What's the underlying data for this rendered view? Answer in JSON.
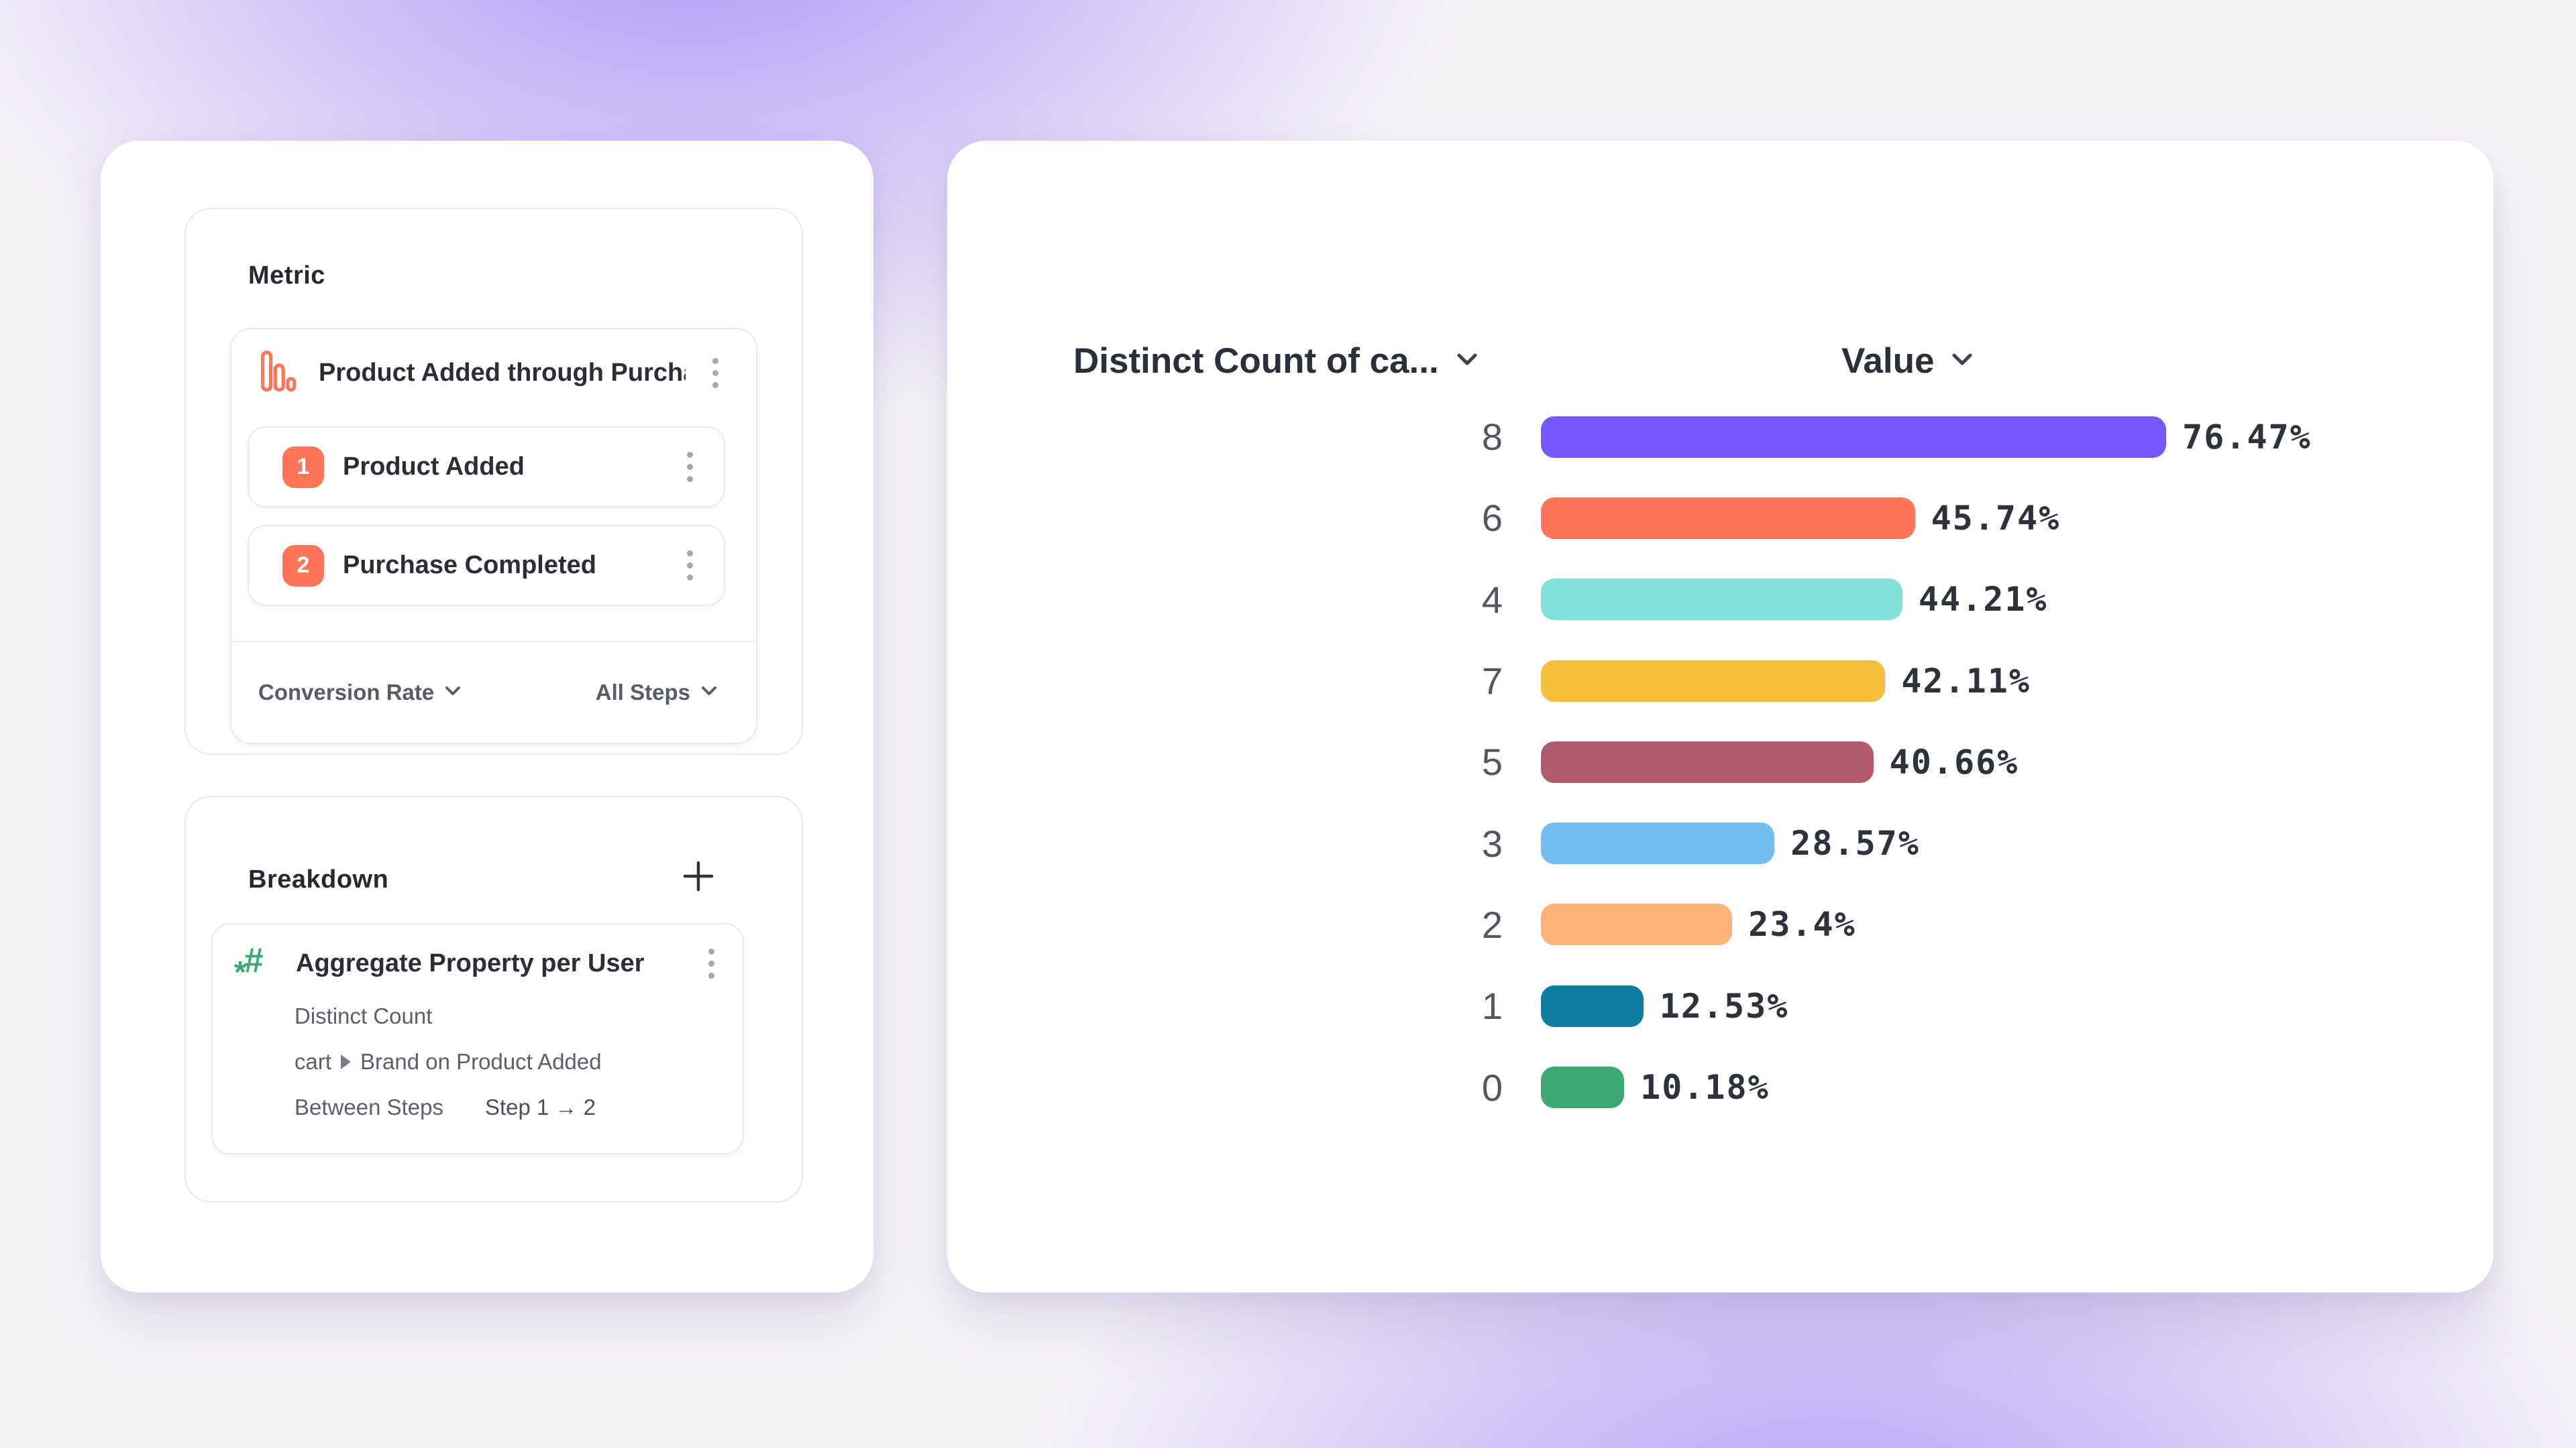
{
  "left": {
    "metric": {
      "title": "Metric",
      "funnel": {
        "name": "Product Added through Purcha...",
        "steps": [
          {
            "num": "1",
            "label": "Product Added"
          },
          {
            "num": "2",
            "label": "Purchase Completed"
          }
        ],
        "conversion_label": "Conversion Rate",
        "steps_label": "All Steps"
      }
    },
    "breakdown": {
      "title": "Breakdown",
      "item": {
        "name": "Aggregate Property per User",
        "aggregation": "Distinct Count",
        "path_prefix": "cart",
        "path_suffix": "Brand on Product Added",
        "between_label": "Between Steps",
        "between_value": "Step 1 → 2"
      }
    }
  },
  "report": {
    "col1_header": "Distinct Count of ca...",
    "col2_header": "Value"
  },
  "accent_colors": {
    "step_badge": "#FF7557",
    "funnel_icon": "#FF7557",
    "aggregate_icon": "#3BA974",
    "background_glow": "#7B58F6"
  },
  "chart_data": {
    "type": "bar",
    "orientation": "horizontal",
    "title": "",
    "categories": [
      "8",
      "6",
      "4",
      "7",
      "5",
      "3",
      "2",
      "1",
      "0"
    ],
    "values": [
      76.47,
      45.74,
      44.21,
      42.11,
      40.66,
      28.57,
      23.4,
      12.53,
      10.18
    ],
    "value_labels": [
      "76.47%",
      "45.74%",
      "44.21%",
      "42.11%",
      "40.66%",
      "28.57%",
      "23.4%",
      "12.53%",
      "10.18%"
    ],
    "colors": [
      "#7856FF",
      "#FF7557",
      "#80E1D9",
      "#F8BC3B",
      "#B2596E",
      "#72BEF4",
      "#FFB27A",
      "#0D7EA0",
      "#3BA974"
    ],
    "xlim": [
      0,
      100
    ],
    "grid": false,
    "legend": false
  }
}
